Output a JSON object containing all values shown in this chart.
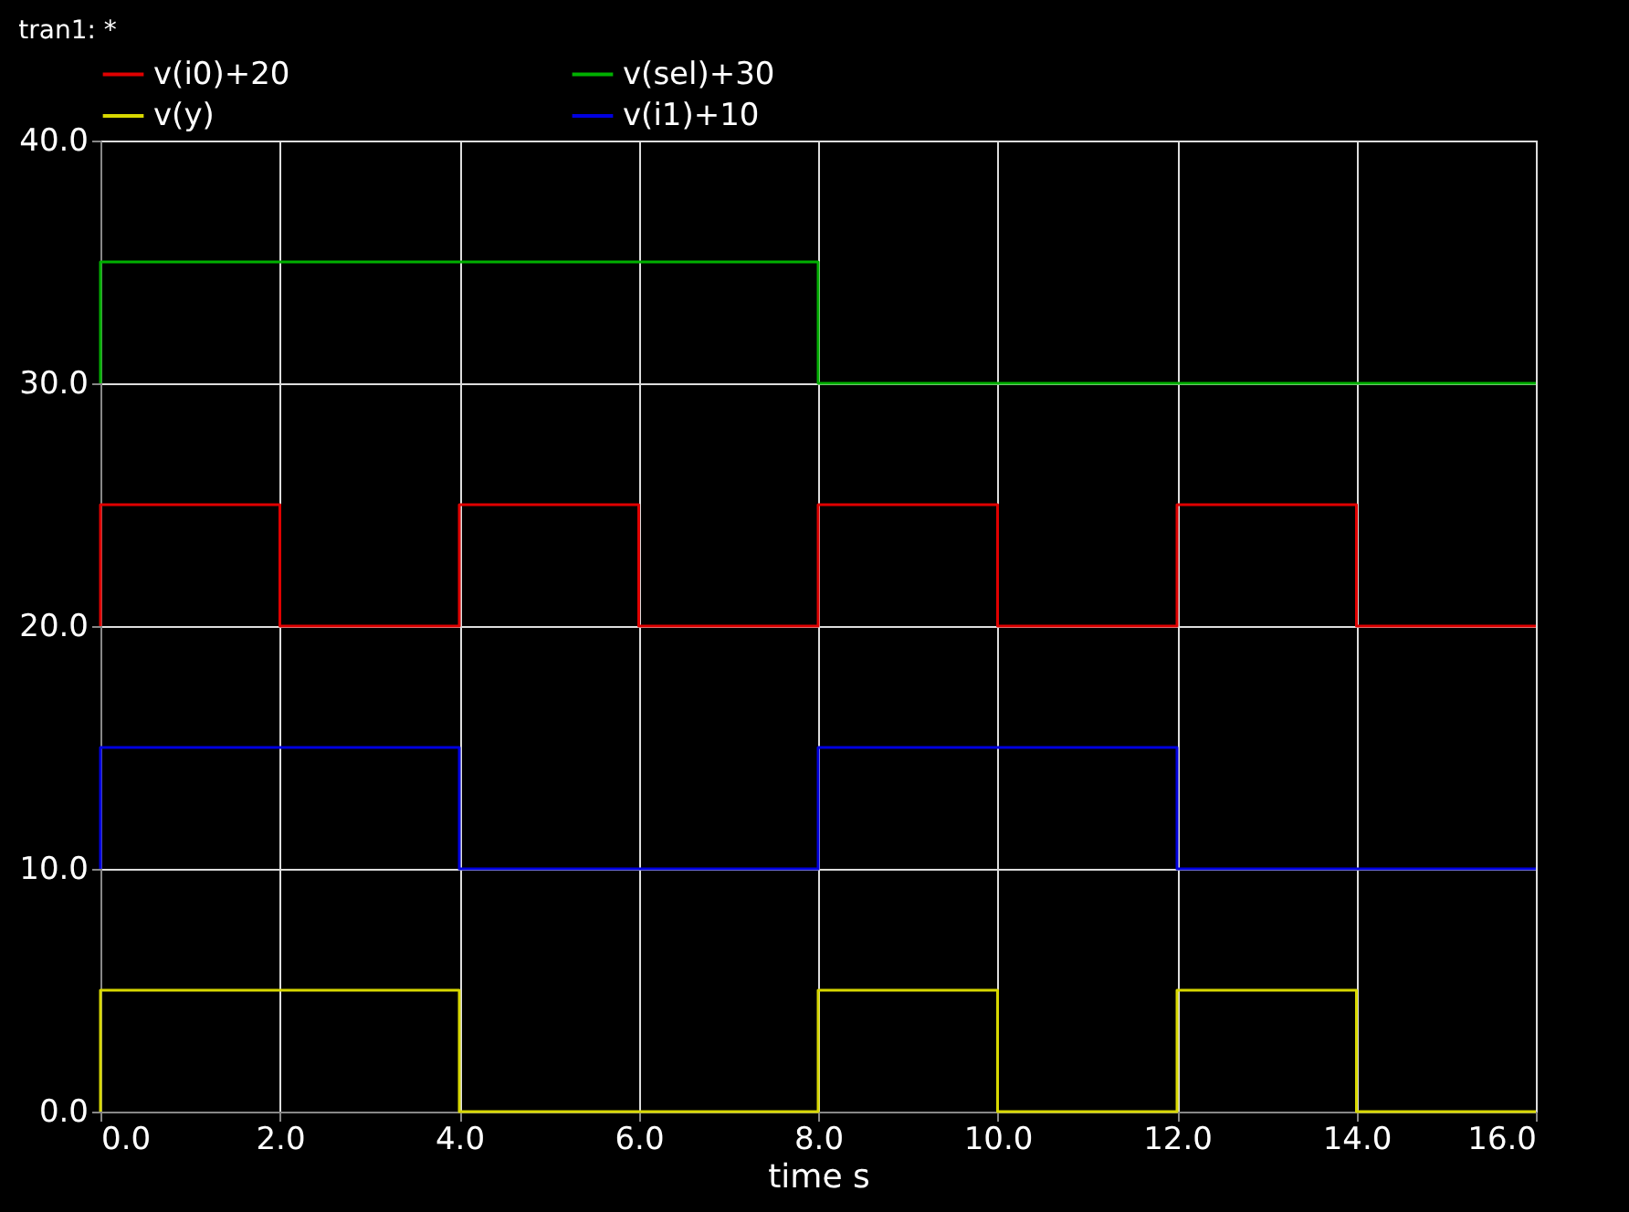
{
  "chart_data": {
    "type": "step",
    "title": "tran1: *",
    "xlabel": "time          s",
    "legend": "top",
    "grid": true,
    "xlim": [
      0,
      16
    ],
    "xticks": [
      {
        "value": 0,
        "label": "0.0"
      },
      {
        "value": 2,
        "label": "2.0"
      },
      {
        "value": 4,
        "label": "4.0"
      },
      {
        "value": 6,
        "label": "6.0"
      },
      {
        "value": 8,
        "label": "8.0"
      },
      {
        "value": 10,
        "label": "10.0"
      },
      {
        "value": 12,
        "label": "12.0"
      },
      {
        "value": 14,
        "label": "14.0"
      },
      {
        "value": 16,
        "label": "16.0"
      }
    ],
    "ylim": [
      0,
      40
    ],
    "yticks": [
      {
        "value": 0,
        "label": "0.0"
      },
      {
        "value": 10,
        "label": "10.0"
      },
      {
        "value": 20,
        "label": "20.0"
      },
      {
        "value": 30,
        "label": "30.0"
      },
      {
        "value": 40,
        "label": "40.0"
      }
    ],
    "series": [
      {
        "name": "v(i0)+20",
        "color": "#e00000",
        "x": [
          0,
          0,
          2,
          4,
          6,
          8,
          10,
          12,
          14,
          16
        ],
        "values": [
          20,
          25,
          20,
          25,
          20,
          25,
          20,
          25,
          20,
          20
        ]
      },
      {
        "name": "v(sel)+30",
        "color": "#00b000",
        "x": [
          0,
          0,
          8,
          16
        ],
        "values": [
          30,
          35,
          30,
          30
        ]
      },
      {
        "name": "v(y)",
        "color": "#d8d800",
        "x": [
          0,
          0,
          4,
          8,
          10,
          12,
          14,
          16
        ],
        "values": [
          0,
          5,
          0,
          5,
          0,
          5,
          0,
          0
        ]
      },
      {
        "name": "v(i1)+10",
        "color": "#0000e0",
        "x": [
          0,
          0,
          4,
          8,
          12,
          16
        ],
        "values": [
          10,
          15,
          10,
          15,
          10,
          10
        ]
      }
    ]
  }
}
